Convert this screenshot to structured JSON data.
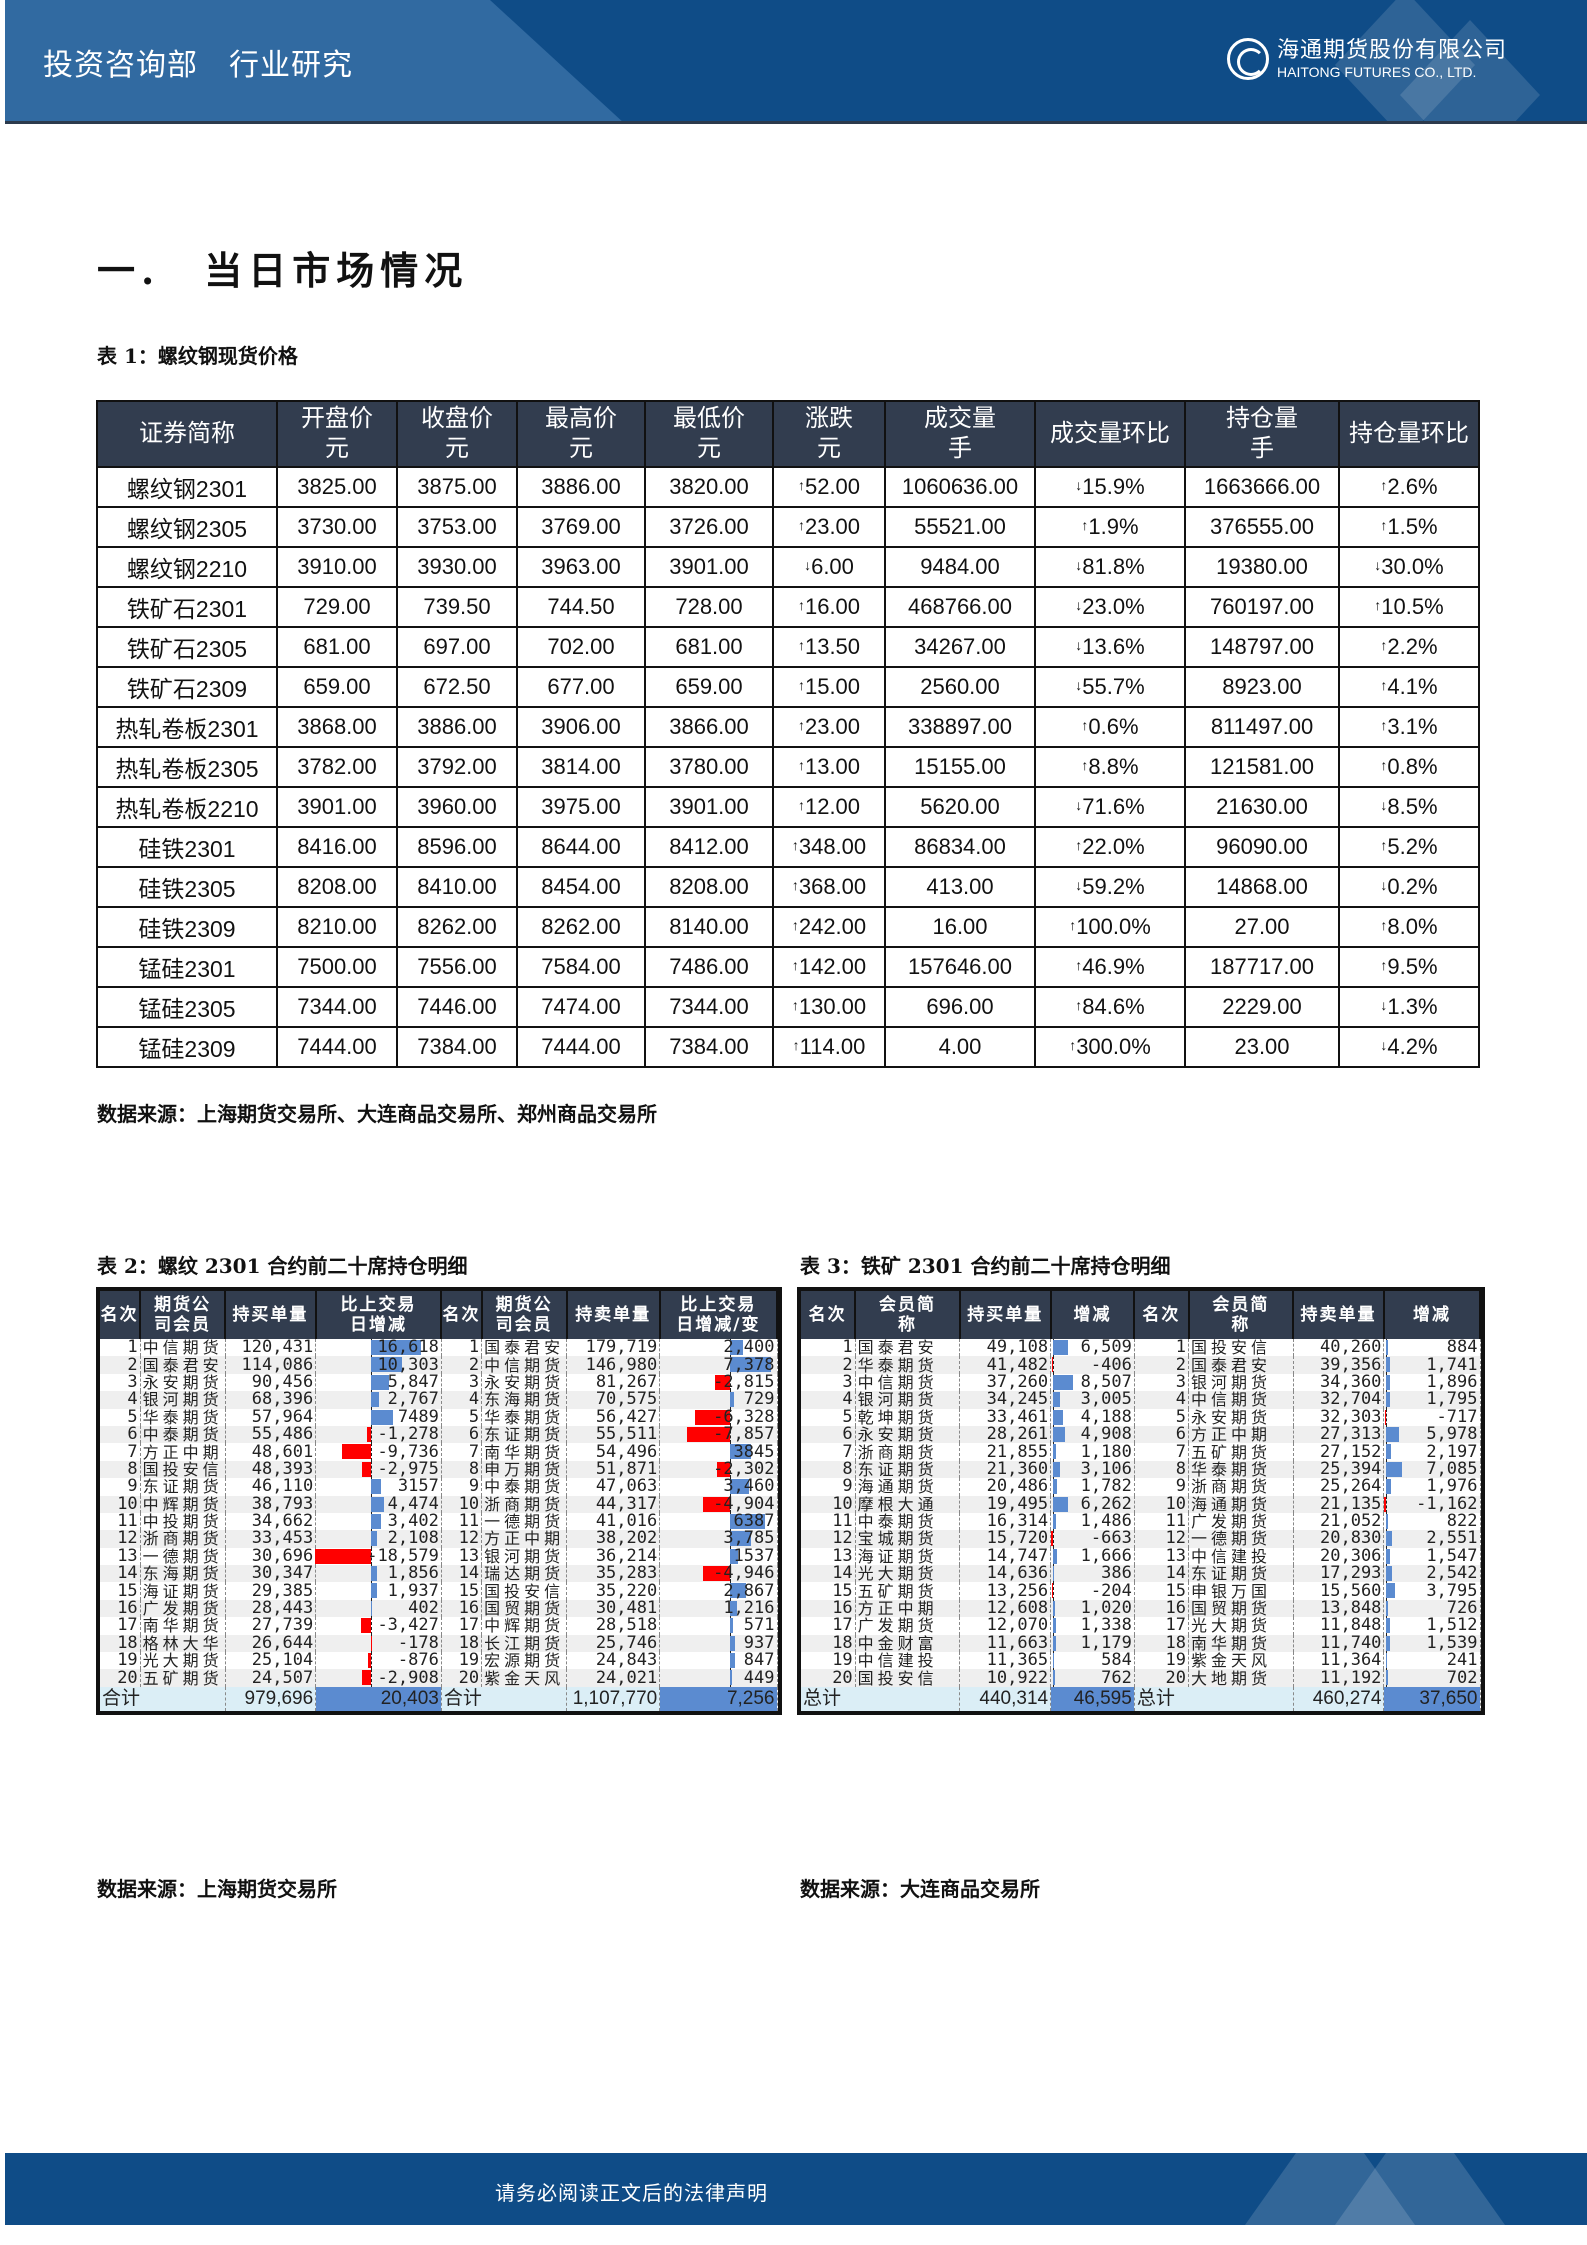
{
  "header": {
    "title": "投资咨询部　行业研究",
    "logo_cn": "海通期货股份有限公司",
    "logo_en": "HAITONG FUTURES CO., LTD.",
    "logo_icon": "haitong-logo-icon"
  },
  "section_title": "一.　当日市场情况",
  "table1": {
    "caption": "表 1：螺纹钢现货价格",
    "headers": [
      {
        "l1": "证券简称",
        "l2": ""
      },
      {
        "l1": "开盘价",
        "l2": "元"
      },
      {
        "l1": "收盘价",
        "l2": "元"
      },
      {
        "l1": "最高价",
        "l2": "元"
      },
      {
        "l1": "最低价",
        "l2": "元"
      },
      {
        "l1": "涨跌",
        "l2": "元"
      },
      {
        "l1": "成交量",
        "l2": "手"
      },
      {
        "l1": "成交量环比",
        "l2": ""
      },
      {
        "l1": "持仓量",
        "l2": "手"
      },
      {
        "l1": "持仓量环比",
        "l2": ""
      }
    ],
    "rows": [
      {
        "name": "螺纹钢2301",
        "open": "3825.00",
        "close": "3875.00",
        "high": "3886.00",
        "low": "3820.00",
        "chg_dir": "up",
        "chg": "52.00",
        "vol": "1060636.00",
        "vol_dir": "down",
        "vol_chg": "15.9%",
        "oi": "1663666.00",
        "oi_dir": "up",
        "oi_chg": "2.6%"
      },
      {
        "name": "螺纹钢2305",
        "open": "3730.00",
        "close": "3753.00",
        "high": "3769.00",
        "low": "3726.00",
        "chg_dir": "up",
        "chg": "23.00",
        "vol": "55521.00",
        "vol_dir": "up",
        "vol_chg": "1.9%",
        "oi": "376555.00",
        "oi_dir": "up",
        "oi_chg": "1.5%"
      },
      {
        "name": "螺纹钢2210",
        "open": "3910.00",
        "close": "3930.00",
        "high": "3963.00",
        "low": "3901.00",
        "chg_dir": "down",
        "chg": "6.00",
        "vol": "9484.00",
        "vol_dir": "down",
        "vol_chg": "81.8%",
        "oi": "19380.00",
        "oi_dir": "down",
        "oi_chg": "30.0%"
      },
      {
        "name": "铁矿石2301",
        "open": "729.00",
        "close": "739.50",
        "high": "744.50",
        "low": "728.00",
        "chg_dir": "up",
        "chg": "16.00",
        "vol": "468766.00",
        "vol_dir": "down",
        "vol_chg": "23.0%",
        "oi": "760197.00",
        "oi_dir": "up",
        "oi_chg": "10.5%"
      },
      {
        "name": "铁矿石2305",
        "open": "681.00",
        "close": "697.00",
        "high": "702.00",
        "low": "681.00",
        "chg_dir": "up",
        "chg": "13.50",
        "vol": "34267.00",
        "vol_dir": "down",
        "vol_chg": "13.6%",
        "oi": "148797.00",
        "oi_dir": "up",
        "oi_chg": "2.2%"
      },
      {
        "name": "铁矿石2309",
        "open": "659.00",
        "close": "672.50",
        "high": "677.00",
        "low": "659.00",
        "chg_dir": "up",
        "chg": "15.00",
        "vol": "2560.00",
        "vol_dir": "down",
        "vol_chg": "55.7%",
        "oi": "8923.00",
        "oi_dir": "up",
        "oi_chg": "4.1%"
      },
      {
        "name": "热轧卷板2301",
        "open": "3868.00",
        "close": "3886.00",
        "high": "3906.00",
        "low": "3866.00",
        "chg_dir": "up",
        "chg": "23.00",
        "vol": "338897.00",
        "vol_dir": "up",
        "vol_chg": "0.6%",
        "oi": "811497.00",
        "oi_dir": "up",
        "oi_chg": "3.1%"
      },
      {
        "name": "热轧卷板2305",
        "open": "3782.00",
        "close": "3792.00",
        "high": "3814.00",
        "low": "3780.00",
        "chg_dir": "up",
        "chg": "13.00",
        "vol": "15155.00",
        "vol_dir": "up",
        "vol_chg": "8.8%",
        "oi": "121581.00",
        "oi_dir": "up",
        "oi_chg": "0.8%"
      },
      {
        "name": "热轧卷板2210",
        "open": "3901.00",
        "close": "3960.00",
        "high": "3975.00",
        "low": "3901.00",
        "chg_dir": "up",
        "chg": "12.00",
        "vol": "5620.00",
        "vol_dir": "down",
        "vol_chg": "71.6%",
        "oi": "21630.00",
        "oi_dir": "down",
        "oi_chg": "8.5%"
      },
      {
        "name": "硅铁2301",
        "open": "8416.00",
        "close": "8596.00",
        "high": "8644.00",
        "low": "8412.00",
        "chg_dir": "up",
        "chg": "348.00",
        "vol": "86834.00",
        "vol_dir": "up",
        "vol_chg": "22.0%",
        "oi": "96090.00",
        "oi_dir": "up",
        "oi_chg": "5.2%"
      },
      {
        "name": "硅铁2305",
        "open": "8208.00",
        "close": "8410.00",
        "high": "8454.00",
        "low": "8208.00",
        "chg_dir": "up",
        "chg": "368.00",
        "vol": "413.00",
        "vol_dir": "down",
        "vol_chg": "59.2%",
        "oi": "14868.00",
        "oi_dir": "down",
        "oi_chg": "0.2%"
      },
      {
        "name": "硅铁2309",
        "open": "8210.00",
        "close": "8262.00",
        "high": "8262.00",
        "low": "8140.00",
        "chg_dir": "up",
        "chg": "242.00",
        "vol": "16.00",
        "vol_dir": "up",
        "vol_chg": "100.0%",
        "oi": "27.00",
        "oi_dir": "up",
        "oi_chg": "8.0%"
      },
      {
        "name": "锰硅2301",
        "open": "7500.00",
        "close": "7556.00",
        "high": "7584.00",
        "low": "7486.00",
        "chg_dir": "up",
        "chg": "142.00",
        "vol": "157646.00",
        "vol_dir": "up",
        "vol_chg": "46.9%",
        "oi": "187717.00",
        "oi_dir": "up",
        "oi_chg": "9.5%"
      },
      {
        "name": "锰硅2305",
        "open": "7344.00",
        "close": "7446.00",
        "high": "7474.00",
        "low": "7344.00",
        "chg_dir": "up",
        "chg": "130.00",
        "vol": "696.00",
        "vol_dir": "up",
        "vol_chg": "84.6%",
        "oi": "2229.00",
        "oi_dir": "down",
        "oi_chg": "1.3%"
      },
      {
        "name": "锰硅2309",
        "open": "7444.00",
        "close": "7384.00",
        "high": "7444.00",
        "low": "7384.00",
        "chg_dir": "up",
        "chg": "114.00",
        "vol": "4.00",
        "vol_dir": "up",
        "vol_chg": "300.0%",
        "oi": "23.00",
        "oi_dir": "down",
        "oi_chg": "4.2%"
      }
    ],
    "arrow_up": "↑",
    "arrow_down": "↓",
    "source": "数据来源：上海期货交易所、大连商品交易所、郑州商品交易所"
  },
  "table2": {
    "caption": "表 2：螺纹 2301 合约前二十席持仓明细",
    "headers": [
      {
        "l1": "名次",
        "l2": ""
      },
      {
        "l1": "期货公",
        "l2": "司会员"
      },
      {
        "l1": "持买单量",
        "l2": ""
      },
      {
        "l1": "比上交易",
        "l2": "日增减"
      },
      {
        "l1": "名次",
        "l2": ""
      },
      {
        "l1": "期货公",
        "l2": "司会员"
      },
      {
        "l1": "持卖单量",
        "l2": ""
      },
      {
        "l1": "比上交易",
        "l2": "日增减/变"
      }
    ],
    "rows": [
      {
        "rank": "1",
        "buy_name": "中信期货",
        "buy_vol": "120,431",
        "buy_chg": "16,618",
        "buy_v": 16618,
        "sell_rank": "1",
        "sell_name": "国泰君安",
        "sell_vol": "179,719",
        "sell_chg": "2,400",
        "sell_v": 2400
      },
      {
        "rank": "2",
        "buy_name": "国泰君安",
        "buy_vol": "114,086",
        "buy_chg": "10,303",
        "buy_v": 10303,
        "sell_rank": "2",
        "sell_name": "中信期货",
        "sell_vol": "146,980",
        "sell_chg": "7,378",
        "sell_v": 7378
      },
      {
        "rank": "3",
        "buy_name": "永安期货",
        "buy_vol": "90,456",
        "buy_chg": "5,847",
        "buy_v": 5847,
        "sell_rank": "3",
        "sell_name": "永安期货",
        "sell_vol": "81,267",
        "sell_chg": "-2,815",
        "sell_v": -2815
      },
      {
        "rank": "4",
        "buy_name": "银河期货",
        "buy_vol": "68,396",
        "buy_chg": "2,767",
        "buy_v": 2767,
        "sell_rank": "4",
        "sell_name": "东海期货",
        "sell_vol": "70,575",
        "sell_chg": "729",
        "sell_v": 729
      },
      {
        "rank": "5",
        "buy_name": "华泰期货",
        "buy_vol": "57,964",
        "buy_chg": "7489",
        "buy_v": 7489,
        "sell_rank": "5",
        "sell_name": "华泰期货",
        "sell_vol": "56,427",
        "sell_chg": "-6,328",
        "sell_v": -6328
      },
      {
        "rank": "6",
        "buy_name": "中泰期货",
        "buy_vol": "55,486",
        "buy_chg": "-1,278",
        "buy_v": -1278,
        "sell_rank": "6",
        "sell_name": "东证期货",
        "sell_vol": "55,511",
        "sell_chg": "-7,857",
        "sell_v": -7857
      },
      {
        "rank": "7",
        "buy_name": "方正中期",
        "buy_vol": "48,601",
        "buy_chg": "-9,736",
        "buy_v": -9736,
        "sell_rank": "7",
        "sell_name": "南华期货",
        "sell_vol": "54,496",
        "sell_chg": "3845",
        "sell_v": 3845
      },
      {
        "rank": "8",
        "buy_name": "国投安信",
        "buy_vol": "48,393",
        "buy_chg": "-2,975",
        "buy_v": -2975,
        "sell_rank": "8",
        "sell_name": "申万期货",
        "sell_vol": "51,871",
        "sell_chg": "-2,302",
        "sell_v": -2302
      },
      {
        "rank": "9",
        "buy_name": "东证期货",
        "buy_vol": "46,110",
        "buy_chg": "3157",
        "buy_v": 3157,
        "sell_rank": "9",
        "sell_name": "中泰期货",
        "sell_vol": "47,063",
        "sell_chg": "3,460",
        "sell_v": 3460
      },
      {
        "rank": "10",
        "buy_name": "中辉期货",
        "buy_vol": "38,793",
        "buy_chg": "4,474",
        "buy_v": 4474,
        "sell_rank": "10",
        "sell_name": "浙商期货",
        "sell_vol": "44,317",
        "sell_chg": "-4,904",
        "sell_v": -4904
      },
      {
        "rank": "11",
        "buy_name": "中投期货",
        "buy_vol": "34,662",
        "buy_chg": "3,402",
        "buy_v": 3402,
        "sell_rank": "11",
        "sell_name": "一德期货",
        "sell_vol": "41,016",
        "sell_chg": "6387",
        "sell_v": 6387
      },
      {
        "rank": "12",
        "buy_name": "浙商期货",
        "buy_vol": "33,453",
        "buy_chg": "2,108",
        "buy_v": 2108,
        "sell_rank": "12",
        "sell_name": "方正中期",
        "sell_vol": "38,202",
        "sell_chg": "3,785",
        "sell_v": 3785
      },
      {
        "rank": "13",
        "buy_name": "一德期货",
        "buy_vol": "30,696",
        "buy_chg": "-18,579",
        "buy_v": -18579,
        "sell_rank": "13",
        "sell_name": "银河期货",
        "sell_vol": "36,214",
        "sell_chg": "1537",
        "sell_v": 1537
      },
      {
        "rank": "14",
        "buy_name": "东海期货",
        "buy_vol": "30,347",
        "buy_chg": "1,856",
        "buy_v": 1856,
        "sell_rank": "14",
        "sell_name": "瑞达期货",
        "sell_vol": "35,283",
        "sell_chg": "-4,946",
        "sell_v": -4946
      },
      {
        "rank": "15",
        "buy_name": "海证期货",
        "buy_vol": "29,385",
        "buy_chg": "1,937",
        "buy_v": 1937,
        "sell_rank": "15",
        "sell_name": "国投安信",
        "sell_vol": "35,220",
        "sell_chg": "2,867",
        "sell_v": 2867
      },
      {
        "rank": "16",
        "buy_name": "广发期货",
        "buy_vol": "28,443",
        "buy_chg": "402",
        "buy_v": 402,
        "sell_rank": "16",
        "sell_name": "国贸期货",
        "sell_vol": "30,481",
        "sell_chg": "1,216",
        "sell_v": 1216
      },
      {
        "rank": "17",
        "buy_name": "南华期货",
        "buy_vol": "27,739",
        "buy_chg": "-3,427",
        "buy_v": -3427,
        "sell_rank": "17",
        "sell_name": "中辉期货",
        "sell_vol": "28,518",
        "sell_chg": "571",
        "sell_v": 571
      },
      {
        "rank": "18",
        "buy_name": "格林大华",
        "buy_vol": "26,644",
        "buy_chg": "-178",
        "buy_v": -178,
        "sell_rank": "18",
        "sell_name": "长江期货",
        "sell_vol": "25,746",
        "sell_chg": "937",
        "sell_v": 937
      },
      {
        "rank": "19",
        "buy_name": "光大期货",
        "buy_vol": "25,104",
        "buy_chg": "-876",
        "buy_v": -876,
        "sell_rank": "19",
        "sell_name": "宏源期货",
        "sell_vol": "24,843",
        "sell_chg": "847",
        "sell_v": 847
      },
      {
        "rank": "20",
        "buy_name": "五矿期货",
        "buy_vol": "24,507",
        "buy_chg": "-2,908",
        "buy_v": -2908,
        "sell_rank": "20",
        "sell_name": "紫金天风",
        "sell_vol": "24,021",
        "sell_chg": "449",
        "sell_v": 449
      }
    ],
    "total": {
      "label": "合计",
      "buy_vol": "979,696",
      "buy_chg": "20,403",
      "sell_label": "合计",
      "sell_vol": "1,107,770",
      "sell_chg": "7,256"
    },
    "source": "数据来源：上海期货交易所"
  },
  "table3": {
    "caption": "表 3：铁矿 2301 合约前二十席持仓明细",
    "headers": [
      {
        "l1": "名次",
        "l2": ""
      },
      {
        "l1": "会员简",
        "l2": "称"
      },
      {
        "l1": "持买单量",
        "l2": ""
      },
      {
        "l1": "增减",
        "l2": ""
      },
      {
        "l1": "名次",
        "l2": ""
      },
      {
        "l1": "会员简",
        "l2": "称"
      },
      {
        "l1": "持卖单量",
        "l2": ""
      },
      {
        "l1": "增减",
        "l2": ""
      }
    ],
    "rows": [
      {
        "rank": "1",
        "buy_name": "国泰君安",
        "buy_vol": "49,108",
        "buy_chg": "6,509",
        "buy_v": 6509,
        "sell_rank": "1",
        "sell_name": "国投安信",
        "sell_vol": "40,260",
        "sell_chg": "884",
        "sell_v": 884
      },
      {
        "rank": "2",
        "buy_name": "华泰期货",
        "buy_vol": "41,482",
        "buy_chg": "-406",
        "buy_v": -406,
        "sell_rank": "2",
        "sell_name": "国泰君安",
        "sell_vol": "39,356",
        "sell_chg": "1,741",
        "sell_v": 1741
      },
      {
        "rank": "3",
        "buy_name": "中信期货",
        "buy_vol": "37,260",
        "buy_chg": "8,507",
        "buy_v": 8507,
        "sell_rank": "3",
        "sell_name": "银河期货",
        "sell_vol": "34,360",
        "sell_chg": "1,896",
        "sell_v": 1896
      },
      {
        "rank": "4",
        "buy_name": "银河期货",
        "buy_vol": "34,245",
        "buy_chg": "3,005",
        "buy_v": 3005,
        "sell_rank": "4",
        "sell_name": "中信期货",
        "sell_vol": "32,704",
        "sell_chg": "1,795",
        "sell_v": 1795
      },
      {
        "rank": "5",
        "buy_name": "乾坤期货",
        "buy_vol": "33,461",
        "buy_chg": "4,188",
        "buy_v": 4188,
        "sell_rank": "5",
        "sell_name": "永安期货",
        "sell_vol": "32,303",
        "sell_chg": "-717",
        "sell_v": -717
      },
      {
        "rank": "6",
        "buy_name": "永安期货",
        "buy_vol": "28,261",
        "buy_chg": "4,908",
        "buy_v": 4908,
        "sell_rank": "6",
        "sell_name": "方正中期",
        "sell_vol": "27,313",
        "sell_chg": "5,978",
        "sell_v": 5978
      },
      {
        "rank": "7",
        "buy_name": "浙商期货",
        "buy_vol": "21,855",
        "buy_chg": "1,180",
        "buy_v": 1180,
        "sell_rank": "7",
        "sell_name": "五矿期货",
        "sell_vol": "27,152",
        "sell_chg": "2,197",
        "sell_v": 2197
      },
      {
        "rank": "8",
        "buy_name": "东证期货",
        "buy_vol": "21,360",
        "buy_chg": "3,106",
        "buy_v": 3106,
        "sell_rank": "8",
        "sell_name": "华泰期货",
        "sell_vol": "25,394",
        "sell_chg": "7,085",
        "sell_v": 7085
      },
      {
        "rank": "9",
        "buy_name": "海通期货",
        "buy_vol": "20,486",
        "buy_chg": "1,782",
        "buy_v": 1782,
        "sell_rank": "9",
        "sell_name": "浙商期货",
        "sell_vol": "25,264",
        "sell_chg": "1,976",
        "sell_v": 1976
      },
      {
        "rank": "10",
        "buy_name": "摩根大通",
        "buy_vol": "19,495",
        "buy_chg": "6,262",
        "buy_v": 6262,
        "sell_rank": "10",
        "sell_name": "海通期货",
        "sell_vol": "21,135",
        "sell_chg": "-1,162",
        "sell_v": -1162
      },
      {
        "rank": "11",
        "buy_name": "中泰期货",
        "buy_vol": "16,314",
        "buy_chg": "1,486",
        "buy_v": 1486,
        "sell_rank": "11",
        "sell_name": "广发期货",
        "sell_vol": "21,052",
        "sell_chg": "822",
        "sell_v": 822
      },
      {
        "rank": "12",
        "buy_name": "宝城期货",
        "buy_vol": "15,720",
        "buy_chg": "-663",
        "buy_v": -663,
        "sell_rank": "12",
        "sell_name": "一德期货",
        "sell_vol": "20,830",
        "sell_chg": "2,551",
        "sell_v": 2551
      },
      {
        "rank": "13",
        "buy_name": "海证期货",
        "buy_vol": "14,747",
        "buy_chg": "1,666",
        "buy_v": 1666,
        "sell_rank": "13",
        "sell_name": "中信建投",
        "sell_vol": "20,306",
        "sell_chg": "1,547",
        "sell_v": 1547
      },
      {
        "rank": "14",
        "buy_name": "光大期货",
        "buy_vol": "14,636",
        "buy_chg": "386",
        "buy_v": 386,
        "sell_rank": "14",
        "sell_name": "东证期货",
        "sell_vol": "17,293",
        "sell_chg": "2,542",
        "sell_v": 2542
      },
      {
        "rank": "15",
        "buy_name": "五矿期货",
        "buy_vol": "13,256",
        "buy_chg": "-204",
        "buy_v": -204,
        "sell_rank": "15",
        "sell_name": "申银万国",
        "sell_vol": "15,560",
        "sell_chg": "3,795",
        "sell_v": 3795
      },
      {
        "rank": "16",
        "buy_name": "方正中期",
        "buy_vol": "12,608",
        "buy_chg": "1,020",
        "buy_v": 1020,
        "sell_rank": "16",
        "sell_name": "国贸期货",
        "sell_vol": "13,848",
        "sell_chg": "726",
        "sell_v": 726
      },
      {
        "rank": "17",
        "buy_name": "广发期货",
        "buy_vol": "12,070",
        "buy_chg": "1,338",
        "buy_v": 1338,
        "sell_rank": "17",
        "sell_name": "光大期货",
        "sell_vol": "11,848",
        "sell_chg": "1,512",
        "sell_v": 1512
      },
      {
        "rank": "18",
        "buy_name": "中金财富",
        "buy_vol": "11,663",
        "buy_chg": "1,179",
        "buy_v": 1179,
        "sell_rank": "18",
        "sell_name": "南华期货",
        "sell_vol": "11,740",
        "sell_chg": "1,539",
        "sell_v": 1539
      },
      {
        "rank": "19",
        "buy_name": "中信建投",
        "buy_vol": "11,365",
        "buy_chg": "584",
        "buy_v": 584,
        "sell_rank": "19",
        "sell_name": "紫金天风",
        "sell_vol": "11,364",
        "sell_chg": "241",
        "sell_v": 241
      },
      {
        "rank": "20",
        "buy_name": "国投安信",
        "buy_vol": "10,922",
        "buy_chg": "762",
        "buy_v": 762,
        "sell_rank": "20",
        "sell_name": "大地期货",
        "sell_vol": "11,192",
        "sell_chg": "702",
        "sell_v": 702
      }
    ],
    "total": {
      "label": "总计",
      "buy_vol": "440,314",
      "buy_chg": "46,595",
      "sell_label": "总计",
      "sell_vol": "460,274",
      "sell_chg": "37,650"
    },
    "source": "数据来源：大连商品交易所"
  },
  "colors": {
    "up": "#ee1111",
    "down": "#13cc13",
    "bar_pos": "#5b8bd0",
    "bar_neg": "#ff0000",
    "brand": "#0f4c87",
    "header_bg": "#323d4f"
  },
  "footer": {
    "disclaimer": "请务必阅读正文后的法律声明"
  }
}
